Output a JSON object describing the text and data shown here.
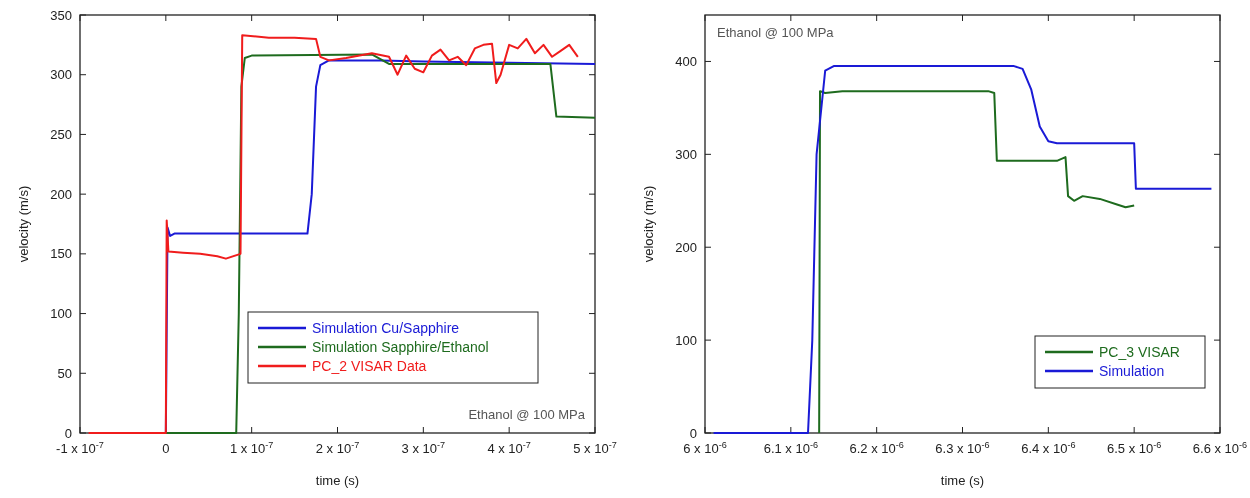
{
  "chart_data": [
    {
      "type": "line",
      "xlabel": "time (s)",
      "ylabel": "velocity (m/s)",
      "annotations": [
        "Ethanol @ 100 MPa"
      ],
      "legend": "bottom right",
      "xlim": [
        -1e-07,
        5e-07
      ],
      "ylim": [
        0,
        350
      ],
      "xticks": [
        {
          "value": -1e-07,
          "label": "-1 x 10$^{-7}$"
        },
        0,
        {
          "value": 1e-07,
          "label": "1 x 10$^{-7}$"
        },
        {
          "value": 2e-07,
          "label": "2 x 10$^{-7}$"
        },
        {
          "value": 3e-07,
          "label": "3 x 10$^{-7}$"
        },
        {
          "value": 4e-07,
          "label": "4 x 10$^{-7}$"
        },
        {
          "value": 5e-07,
          "label": "5 x 10$^{-7}$"
        }
      ],
      "yticks": [
        0,
        50,
        100,
        150,
        200,
        250,
        300,
        350
      ],
      "series": [
        {
          "name": "Simulation Cu/Sapphire",
          "color": "#1a1ad6",
          "x": [
            0,
            2e-09,
            5e-09,
            1e-08,
            1.65e-07,
            1.7e-07,
            1.75e-07,
            1.8e-07,
            1.9e-07,
            2.5e-07,
            3e-07,
            4e-07,
            5e-07
          ],
          "values": [
            0,
            172,
            165,
            167,
            167,
            200,
            290,
            308,
            312,
            312,
            311,
            310,
            309
          ]
        },
        {
          "name": "Simulation Sapphire/Ethanol",
          "color": "#1e6b1e",
          "x": [
            0,
            8.2e-08,
            8.5e-08,
            8.8e-08,
            9.2e-08,
            1e-07,
            2.4e-07,
            2.6e-07,
            4.48e-07,
            4.55e-07,
            5e-07
          ],
          "values": [
            0,
            0,
            100,
            290,
            314,
            316,
            317,
            309,
            309,
            265,
            264
          ]
        },
        {
          "name": "PC_2 VISAR Data",
          "color": "#f01c1c",
          "x": [
            -9e-08,
            -5e-08,
            0,
            1e-09,
            3e-09,
            2e-08,
            4e-08,
            6e-08,
            7e-08,
            8.7e-08,
            8.9e-08,
            1.2e-07,
            1.5e-07,
            1.75e-07,
            1.8e-07,
            1.9e-07,
            2.1e-07,
            2.4e-07,
            2.6e-07,
            2.7e-07,
            2.8e-07,
            2.9e-07,
            3e-07,
            3.1e-07,
            3.2e-07,
            3.3e-07,
            3.4e-07,
            3.5e-07,
            3.6e-07,
            3.7e-07,
            3.8e-07,
            3.85e-07,
            3.9e-07,
            4e-07,
            4.1e-07,
            4.2e-07,
            4.3e-07,
            4.4e-07,
            4.5e-07,
            4.6e-07,
            4.7e-07,
            4.8e-07
          ],
          "values": [
            0,
            0,
            0,
            178,
            152,
            151,
            150,
            148,
            146,
            150,
            333,
            331,
            331,
            330,
            315,
            312,
            314,
            318,
            315,
            300,
            316,
            305,
            302,
            316,
            321,
            312,
            315,
            308,
            322,
            325,
            326,
            293,
            300,
            325,
            322,
            330,
            318,
            325,
            315,
            320,
            325,
            315
          ]
        }
      ]
    },
    {
      "type": "line",
      "xlabel": "time (s)",
      "ylabel": "velocity (m/s)",
      "annotations": [
        "Ethanol @ 100 MPa"
      ],
      "legend": "bottom right",
      "xlim": [
        6e-06,
        6.6e-06
      ],
      "ylim": [
        0,
        450
      ],
      "xticks": [
        {
          "value": 6e-06,
          "label": "6 x 10$^{-6}$"
        },
        {
          "value": 6.1e-06,
          "label": "6.1 x 10$^{-6}$"
        },
        {
          "value": 6.2e-06,
          "label": "6.2 x 10$^{-6}$"
        },
        {
          "value": 6.3e-06,
          "label": "6.3 x 10$^{-6}$"
        },
        {
          "value": 6.4e-06,
          "label": "6.4 x 10$^{-6}$"
        },
        {
          "value": 6.5e-06,
          "label": "6.5 x 10$^{-6}$"
        },
        {
          "value": 6.6e-06,
          "label": "6.6 x 10$^{-6}$"
        }
      ],
      "yticks": [
        0,
        100,
        200,
        300,
        400
      ],
      "series": [
        {
          "name": "PC_3 VISAR",
          "color": "#1e6b1e",
          "x": [
            6.133e-06,
            6.134e-06,
            6.14e-06,
            6.16e-06,
            6.33e-06,
            6.337e-06,
            6.34e-06,
            6.41e-06,
            6.42e-06,
            6.423e-06,
            6.43e-06,
            6.44e-06,
            6.46e-06,
            6.48e-06,
            6.49e-06,
            6.5e-06
          ],
          "values": [
            0,
            368,
            366,
            368,
            368,
            366,
            293,
            293,
            297,
            255,
            250,
            255,
            252,
            246,
            243,
            245
          ]
        },
        {
          "name": "Simulation",
          "color": "#1a1ad6",
          "x": [
            6.01e-06,
            6.12e-06,
            6.125e-06,
            6.13e-06,
            6.14e-06,
            6.15e-06,
            6.36e-06,
            6.37e-06,
            6.38e-06,
            6.39e-06,
            6.4e-06,
            6.41e-06,
            6.5e-06,
            6.502e-06,
            6.59e-06
          ],
          "values": [
            0,
            0,
            100,
            300,
            390,
            395,
            395,
            392,
            370,
            330,
            314,
            312,
            312,
            263,
            263
          ]
        }
      ]
    }
  ]
}
